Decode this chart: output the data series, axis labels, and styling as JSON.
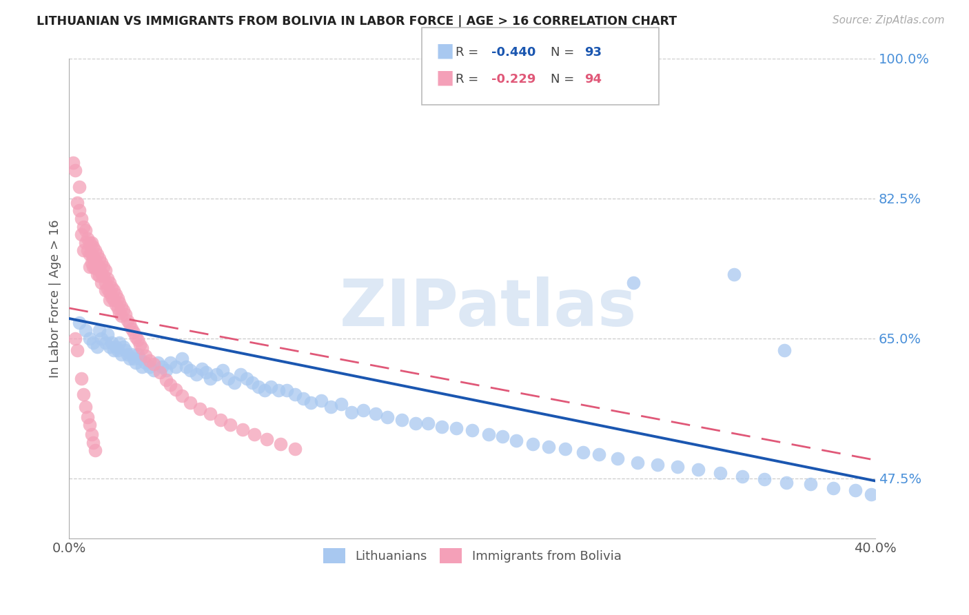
{
  "title": "LITHUANIAN VS IMMIGRANTS FROM BOLIVIA IN LABOR FORCE | AGE > 16 CORRELATION CHART",
  "source": "Source: ZipAtlas.com",
  "ylabel": "In Labor Force | Age > 16",
  "xlim": [
    0.0,
    0.4
  ],
  "ylim": [
    0.4,
    1.0
  ],
  "blue_R": -0.44,
  "blue_N": 93,
  "pink_R": -0.229,
  "pink_N": 94,
  "blue_color": "#a8c8f0",
  "pink_color": "#f4a0b8",
  "blue_line_color": "#1a56b0",
  "pink_line_color": "#e05878",
  "grid_color": "#cccccc",
  "title_color": "#222222",
  "tick_color_right": "#4a90d9",
  "watermark": "ZIPatlas",
  "legend_label_blue": "Lithuanians",
  "legend_label_pink": "Immigrants from Bolivia",
  "blue_scatter_x": [
    0.005,
    0.008,
    0.01,
    0.012,
    0.014,
    0.015,
    0.016,
    0.018,
    0.019,
    0.02,
    0.021,
    0.022,
    0.023,
    0.024,
    0.025,
    0.026,
    0.027,
    0.028,
    0.029,
    0.03,
    0.031,
    0.032,
    0.033,
    0.034,
    0.035,
    0.036,
    0.038,
    0.04,
    0.042,
    0.044,
    0.046,
    0.048,
    0.05,
    0.053,
    0.056,
    0.058,
    0.06,
    0.063,
    0.066,
    0.068,
    0.07,
    0.073,
    0.076,
    0.079,
    0.082,
    0.085,
    0.088,
    0.091,
    0.094,
    0.097,
    0.1,
    0.104,
    0.108,
    0.112,
    0.116,
    0.12,
    0.125,
    0.13,
    0.135,
    0.14,
    0.146,
    0.152,
    0.158,
    0.165,
    0.172,
    0.178,
    0.185,
    0.192,
    0.2,
    0.208,
    0.215,
    0.222,
    0.23,
    0.238,
    0.246,
    0.255,
    0.263,
    0.272,
    0.282,
    0.292,
    0.302,
    0.312,
    0.323,
    0.334,
    0.345,
    0.356,
    0.368,
    0.379,
    0.39,
    0.398,
    0.28,
    0.33,
    0.355
  ],
  "blue_scatter_y": [
    0.67,
    0.66,
    0.65,
    0.645,
    0.64,
    0.66,
    0.65,
    0.645,
    0.655,
    0.64,
    0.645,
    0.635,
    0.64,
    0.635,
    0.645,
    0.63,
    0.64,
    0.635,
    0.63,
    0.625,
    0.63,
    0.625,
    0.62,
    0.63,
    0.625,
    0.615,
    0.62,
    0.615,
    0.61,
    0.62,
    0.615,
    0.61,
    0.62,
    0.615,
    0.625,
    0.615,
    0.61,
    0.605,
    0.612,
    0.608,
    0.6,
    0.605,
    0.61,
    0.6,
    0.595,
    0.605,
    0.6,
    0.595,
    0.59,
    0.585,
    0.59,
    0.585,
    0.585,
    0.58,
    0.575,
    0.57,
    0.572,
    0.565,
    0.568,
    0.558,
    0.56,
    0.556,
    0.552,
    0.548,
    0.544,
    0.544,
    0.54,
    0.538,
    0.535,
    0.53,
    0.528,
    0.522,
    0.518,
    0.515,
    0.512,
    0.508,
    0.505,
    0.5,
    0.495,
    0.492,
    0.49,
    0.486,
    0.482,
    0.478,
    0.474,
    0.47,
    0.468,
    0.463,
    0.46,
    0.455,
    0.72,
    0.73,
    0.635
  ],
  "pink_scatter_x": [
    0.002,
    0.003,
    0.004,
    0.005,
    0.005,
    0.006,
    0.006,
    0.007,
    0.007,
    0.008,
    0.008,
    0.009,
    0.009,
    0.01,
    0.01,
    0.01,
    0.011,
    0.011,
    0.011,
    0.012,
    0.012,
    0.012,
    0.013,
    0.013,
    0.013,
    0.014,
    0.014,
    0.014,
    0.015,
    0.015,
    0.015,
    0.016,
    0.016,
    0.016,
    0.017,
    0.017,
    0.018,
    0.018,
    0.018,
    0.019,
    0.019,
    0.02,
    0.02,
    0.02,
    0.021,
    0.021,
    0.022,
    0.022,
    0.023,
    0.023,
    0.024,
    0.024,
    0.025,
    0.025,
    0.026,
    0.026,
    0.027,
    0.028,
    0.029,
    0.03,
    0.031,
    0.032,
    0.033,
    0.034,
    0.035,
    0.036,
    0.038,
    0.04,
    0.042,
    0.045,
    0.048,
    0.05,
    0.053,
    0.056,
    0.06,
    0.065,
    0.07,
    0.075,
    0.08,
    0.086,
    0.092,
    0.098,
    0.105,
    0.112,
    0.003,
    0.004,
    0.006,
    0.007,
    0.008,
    0.009,
    0.01,
    0.011,
    0.012,
    0.013
  ],
  "pink_scatter_y": [
    0.87,
    0.86,
    0.82,
    0.84,
    0.81,
    0.78,
    0.8,
    0.79,
    0.76,
    0.785,
    0.77,
    0.775,
    0.76,
    0.77,
    0.755,
    0.74,
    0.77,
    0.755,
    0.745,
    0.765,
    0.75,
    0.74,
    0.76,
    0.748,
    0.738,
    0.755,
    0.742,
    0.73,
    0.75,
    0.74,
    0.728,
    0.745,
    0.732,
    0.72,
    0.74,
    0.728,
    0.735,
    0.72,
    0.71,
    0.725,
    0.712,
    0.72,
    0.708,
    0.698,
    0.714,
    0.702,
    0.71,
    0.698,
    0.705,
    0.692,
    0.7,
    0.688,
    0.695,
    0.682,
    0.69,
    0.678,
    0.685,
    0.68,
    0.672,
    0.668,
    0.662,
    0.658,
    0.652,
    0.648,
    0.642,
    0.638,
    0.628,
    0.622,
    0.618,
    0.608,
    0.598,
    0.592,
    0.586,
    0.578,
    0.57,
    0.562,
    0.556,
    0.548,
    0.542,
    0.536,
    0.53,
    0.524,
    0.518,
    0.512,
    0.65,
    0.635,
    0.6,
    0.58,
    0.565,
    0.552,
    0.542,
    0.53,
    0.52,
    0.51
  ]
}
